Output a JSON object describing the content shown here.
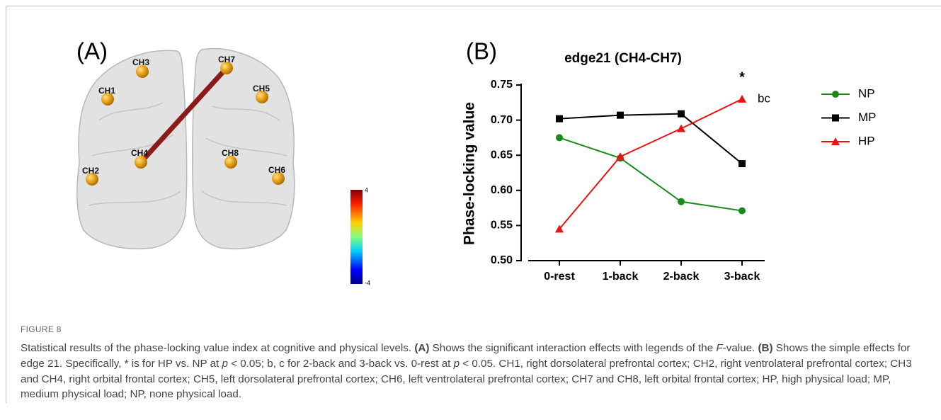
{
  "panel_a": {
    "label": "(A)",
    "channels": [
      "CH1",
      "CH2",
      "CH3",
      "CH4",
      "CH5",
      "CH6",
      "CH7",
      "CH8"
    ],
    "colorbar": {
      "max": 4,
      "min": -4
    }
  },
  "chart_data": {
    "type": "line",
    "panel_label": "(B)",
    "title": "edge21 (CH4-CH7)",
    "y_label": "Phase-locking value",
    "categories": [
      "0-rest",
      "1-back",
      "2-back",
      "3-back"
    ],
    "series": [
      {
        "name": "NP",
        "color": "#1a8a1a",
        "marker": "circle",
        "values": [
          0.675,
          0.646,
          0.584,
          0.571
        ]
      },
      {
        "name": "MP",
        "color": "#000000",
        "marker": "square",
        "values": [
          0.702,
          0.707,
          0.709,
          0.638
        ]
      },
      {
        "name": "HP",
        "color": "#ee1111",
        "marker": "triangle",
        "values": [
          0.545,
          0.648,
          0.688,
          0.73
        ]
      }
    ],
    "ylim": [
      0.5,
      0.75
    ],
    "yticks": [
      {
        "value": 0.5,
        "label": "0.50"
      },
      0.55,
      {
        "value": 0.6,
        "label": "0.60"
      },
      0.65,
      {
        "value": 0.7,
        "label": "0.70"
      },
      0.75
    ],
    "annotations": [
      "*",
      "bc"
    ],
    "legend": "right"
  },
  "caption": {
    "figure_label": "FIGURE 8",
    "text": [
      "Statistical results of the phase-locking value index at cognitive and physical levels. ",
      "(A)",
      " Shows the significant interaction effects with legends of the ",
      "F",
      "-value. ",
      "(B)",
      " Shows the simple effects for edge 21. Specifically, * is for HP vs. NP at ",
      "p",
      " < 0.05; b, c for 2-back and 3-back vs. 0-rest at ",
      "p",
      " < 0.05. CH1, right dorsolateral prefrontal cortex; CH2, right ventrolateral prefrontal cortex; CH3 and CH4, right orbital frontal cortex; CH5, left dorsolateral prefrontal cortex; CH6, left ventrolateral prefrontal cortex; CH7 and CH8, left orbital frontal cortex; HP, high physical load; MP, medium physical load; NP, none physical load."
    ]
  }
}
